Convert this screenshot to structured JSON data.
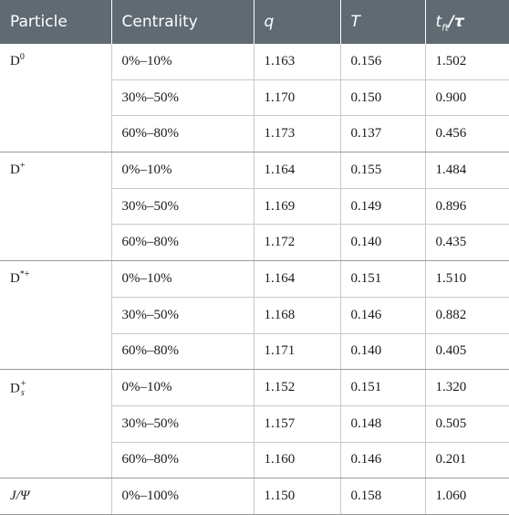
{
  "headers": {
    "particle": "Particle",
    "centrality": "Centrality",
    "q": "q",
    "T": "T",
    "ratio_t": "t",
    "ratio_sub": "ft",
    "ratio_rest": "/τ"
  },
  "particles": [
    {
      "base": "D",
      "sup": "0",
      "sub": ""
    },
    {
      "base": "D",
      "sup": "+",
      "sub": ""
    },
    {
      "base": "D",
      "sup": "*+",
      "sub": ""
    },
    {
      "base": "D",
      "sup": "+",
      "sub": "s"
    },
    {
      "base": "J/Ψ",
      "sup": "",
      "sub": ""
    }
  ],
  "rows": [
    {
      "centrality": "0%–10%",
      "q": "1.163",
      "T": "0.156",
      "ratio": "1.502"
    },
    {
      "centrality": "30%–50%",
      "q": "1.170",
      "T": "0.150",
      "ratio": "0.900"
    },
    {
      "centrality": "60%–80%",
      "q": "1.173",
      "T": "0.137",
      "ratio": "0.456"
    },
    {
      "centrality": "0%–10%",
      "q": "1.164",
      "T": "0.155",
      "ratio": "1.484"
    },
    {
      "centrality": "30%–50%",
      "q": "1.169",
      "T": "0.149",
      "ratio": "0.896"
    },
    {
      "centrality": "60%–80%",
      "q": "1.172",
      "T": "0.140",
      "ratio": "0.435"
    },
    {
      "centrality": "0%–10%",
      "q": "1.164",
      "T": "0.151",
      "ratio": "1.510"
    },
    {
      "centrality": "30%–50%",
      "q": "1.168",
      "T": "0.146",
      "ratio": "0.882"
    },
    {
      "centrality": "60%–80%",
      "q": "1.171",
      "T": "0.140",
      "ratio": "0.405"
    },
    {
      "centrality": "0%–10%",
      "q": "1.152",
      "T": "0.151",
      "ratio": "1.320"
    },
    {
      "centrality": "30%–50%",
      "q": "1.157",
      "T": "0.148",
      "ratio": "0.505"
    },
    {
      "centrality": "60%–80%",
      "q": "1.160",
      "T": "0.146",
      "ratio": "0.201"
    },
    {
      "centrality": "0%–100%",
      "q": "1.150",
      "T": "0.158",
      "ratio": "1.060"
    }
  ]
}
